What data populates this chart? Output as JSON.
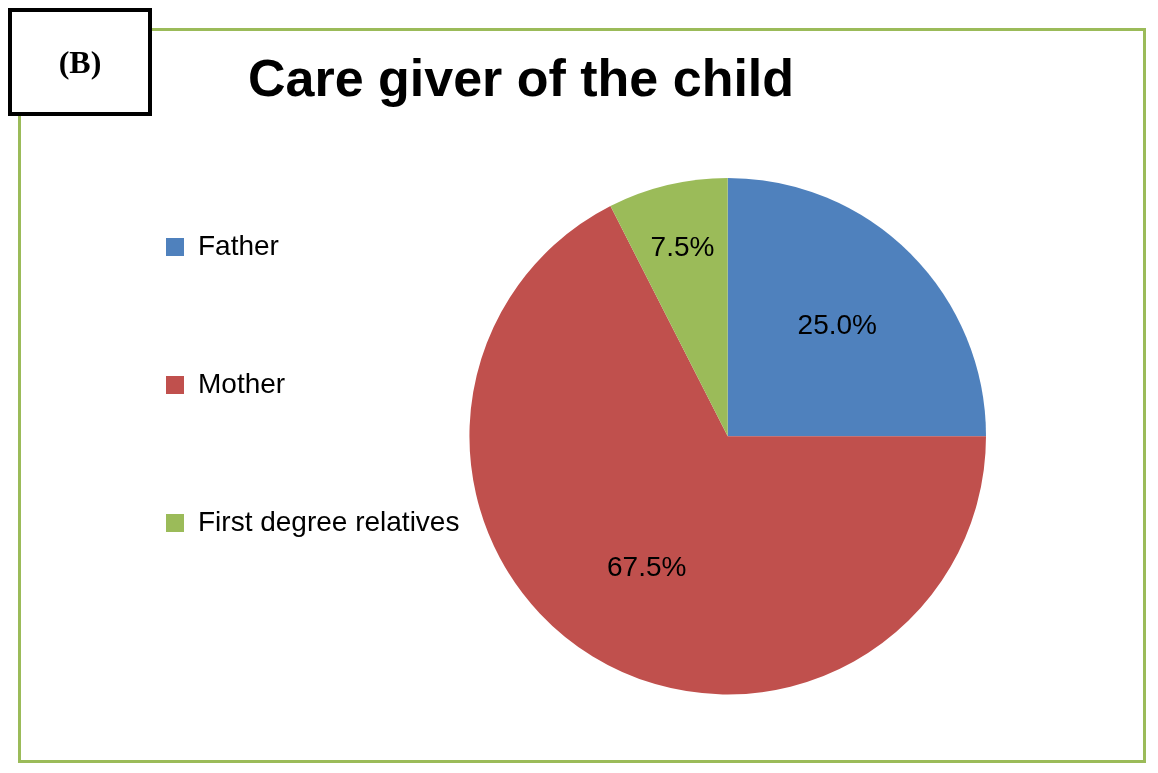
{
  "chart_data": {
    "type": "pie",
    "title": "Care giver of the child",
    "categories": [
      "Father",
      "Mother",
      "First degree relatives"
    ],
    "values": [
      25.0,
      67.5,
      7.5
    ],
    "colors": [
      "#4f81bd",
      "#c0504d",
      "#9bbb59"
    ],
    "value_labels": [
      "25.0%",
      "67.5%",
      "7.5%"
    ],
    "legend": "left",
    "annotations": [
      "(B)"
    ]
  }
}
